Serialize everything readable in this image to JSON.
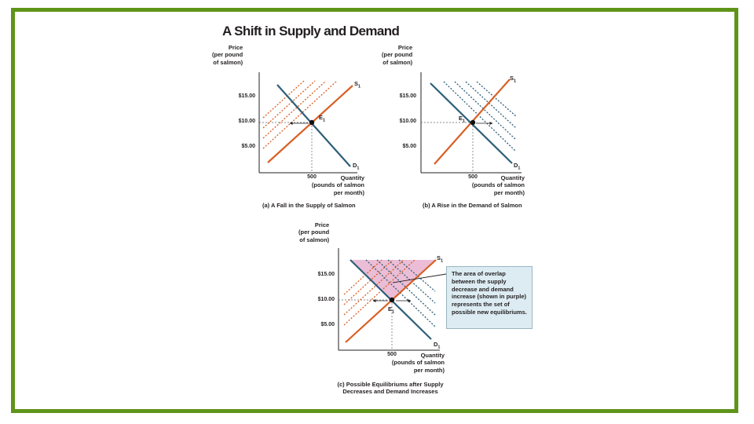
{
  "title": "A Shift in Supply and Demand",
  "colors": {
    "border": "#5f9419",
    "supply": "#d95f24",
    "demand": "#2e5f78",
    "overlap": "#e9b6d2",
    "note_bg": "#dcecf2"
  },
  "y_axis_label": [
    "Price",
    "(per pound",
    "of salmon)"
  ],
  "x_axis_label": [
    "Quantity",
    "(pounds of salmon",
    "per month)"
  ],
  "panels": [
    {
      "caption": "(a) A Fall in the Supply of Salmon",
      "price_ticks": [
        "$15.00",
        "$10.00",
        "$5.00"
      ],
      "quantity_tick": "500",
      "supply_label": "S",
      "supply_sub": "1",
      "demand_label": "D",
      "demand_sub": "1",
      "equilibrium_label": "E",
      "equilibrium_sub": "1"
    },
    {
      "caption": "(b) A Rise in the Demand of Salmon",
      "price_ticks": [
        "$15.00",
        "$10.00",
        "$5.00"
      ],
      "quantity_tick": "500",
      "supply_label": "S",
      "supply_sub": "1",
      "demand_label": "D",
      "demand_sub": "1",
      "equilibrium_label": "E",
      "equilibrium_sub": "1"
    },
    {
      "caption": [
        "(c) Possible Equilibriums after Supply",
        "Decreases and Demand Increases"
      ],
      "price_ticks": [
        "$15.00",
        "$10.00",
        "$5.00"
      ],
      "quantity_tick": "500",
      "supply_label": "S",
      "supply_sub": "1",
      "demand_label": "D",
      "demand_sub": "1",
      "equilibrium_label": "E",
      "equilibrium_sub": "1",
      "note": "The area of overlap between the supply decrease and demand increase (shown in purple) represents the set of possible new equilibriums."
    }
  ]
}
